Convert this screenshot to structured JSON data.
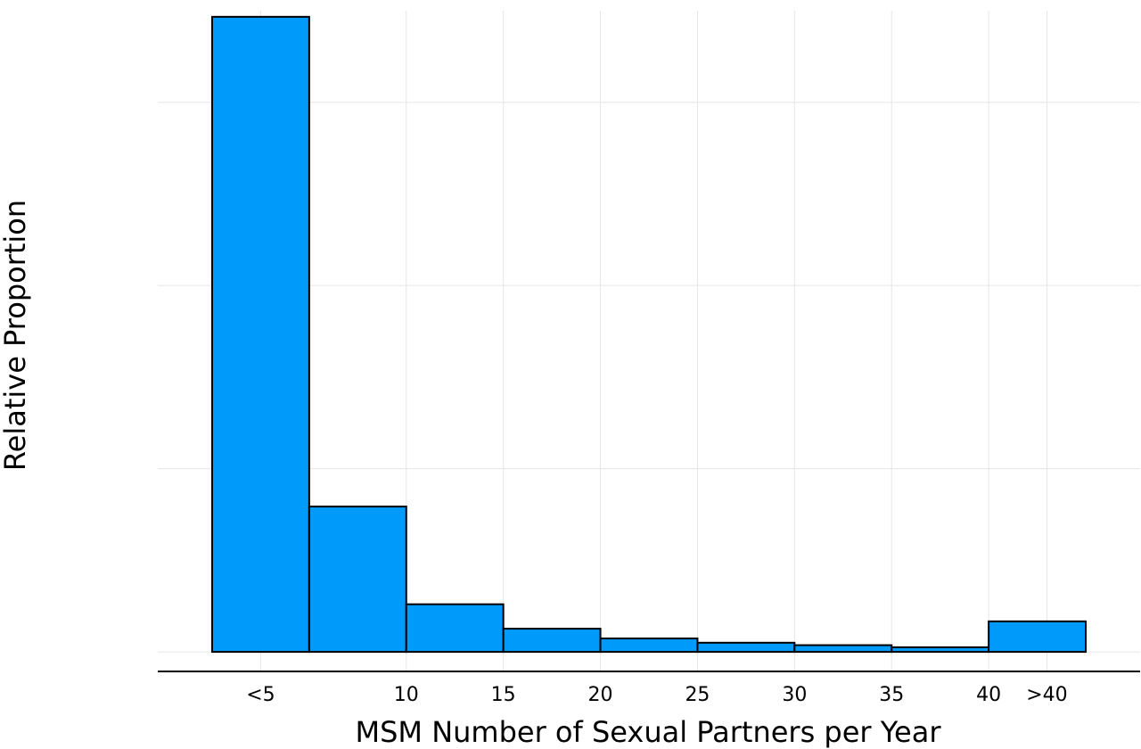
{
  "chart_data": {
    "type": "bar",
    "title": "",
    "xlabel": "MSM Number of Sexual Partners per Year",
    "ylabel": "Relative Proportion",
    "bin_edges": [
      0,
      5,
      10,
      15,
      20,
      25,
      30,
      35,
      40,
      45
    ],
    "values": [
      0.52,
      0.119,
      0.039,
      0.019,
      0.011,
      0.0075,
      0.0055,
      0.0038,
      0.025
    ],
    "xlim": [
      -2.8,
      47.8
    ],
    "ylim": [
      -0.016,
      0.525
    ],
    "y_ticks": [
      0,
      0.15,
      0.3,
      0.45
    ],
    "x_ticks": [
      {
        "x": 2.5,
        "label": "<5"
      },
      {
        "x": 10,
        "label": "10"
      },
      {
        "x": 15,
        "label": "15"
      },
      {
        "x": 20,
        "label": "20"
      },
      {
        "x": 25,
        "label": "25"
      },
      {
        "x": 30,
        "label": "30"
      },
      {
        "x": 35,
        "label": "35"
      },
      {
        "x": 40,
        "label": "40"
      },
      {
        "x": 43,
        "label": ">40"
      }
    ],
    "show_y_tick_labels": false,
    "grid": true,
    "bar_color": "#009AFA",
    "edge_color": "#000000"
  }
}
